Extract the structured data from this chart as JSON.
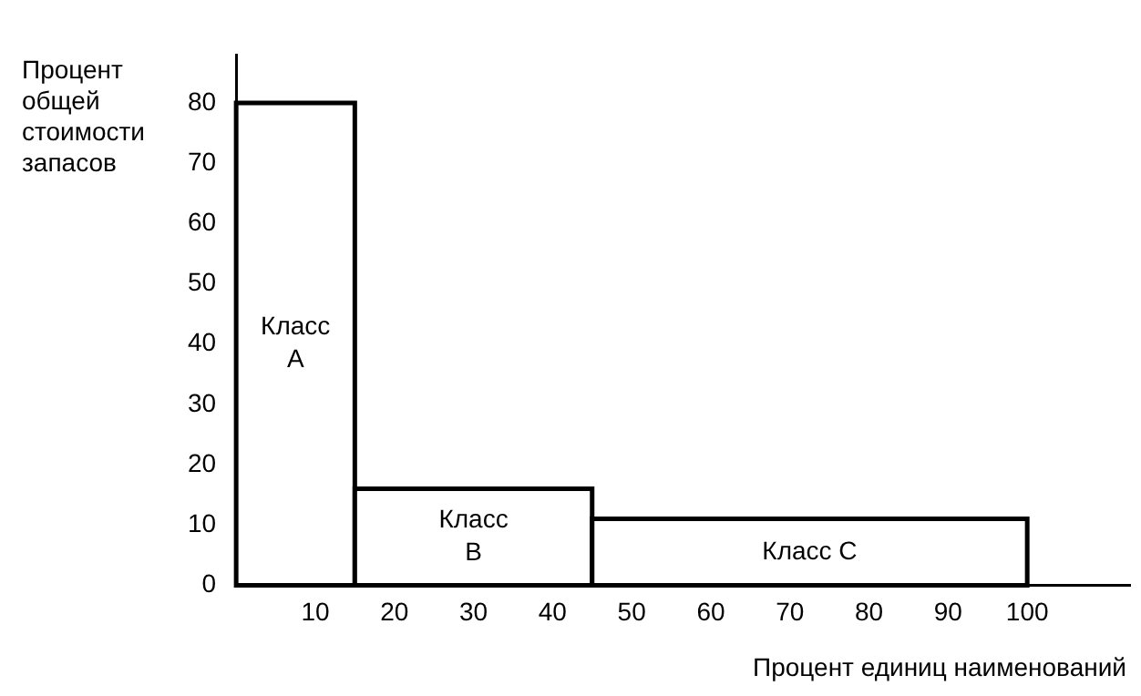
{
  "chart_data": {
    "type": "histogram",
    "xlabel": "Процент единиц наименований",
    "ylabel": "Процент общей стоимости запасов",
    "bins": [
      0,
      15,
      45,
      100
    ],
    "values": [
      80,
      16,
      11
    ],
    "color": "#ffffff",
    "xlim": [
      0,
      113
    ],
    "xticks": [
      10,
      20,
      30,
      40,
      50,
      60,
      70,
      80,
      90,
      100
    ],
    "ylim": [
      0,
      88
    ],
    "yticks": [
      0,
      10,
      20,
      30,
      40,
      50,
      60,
      70,
      80
    ],
    "grid": false,
    "annotations": [
      "Класс\nA",
      "Класс\nB",
      "Класс C"
    ]
  }
}
